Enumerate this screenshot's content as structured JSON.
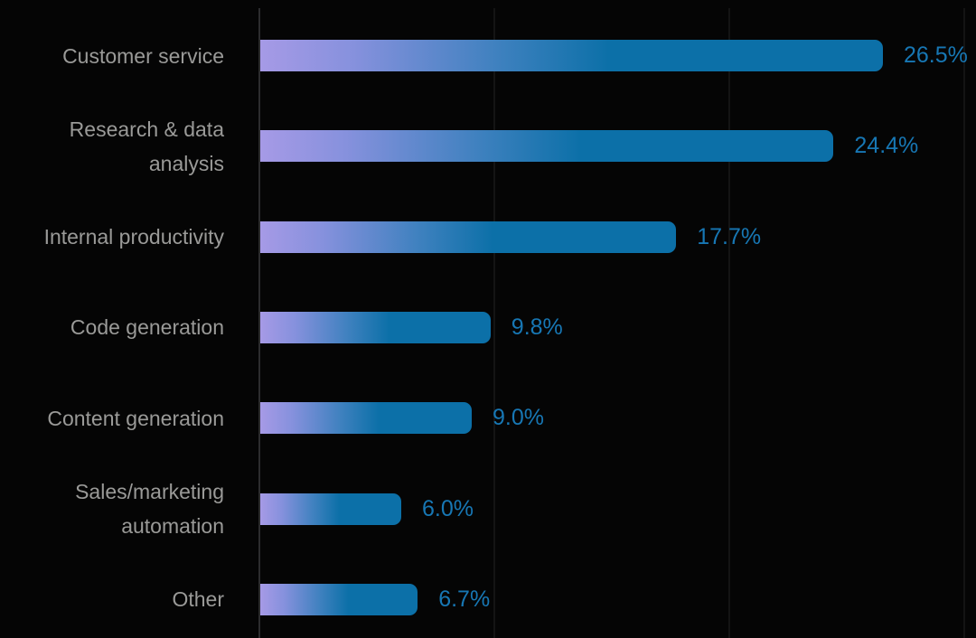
{
  "chart_data": {
    "type": "bar",
    "orientation": "horizontal",
    "title": "",
    "xlabel": "",
    "ylabel": "",
    "xlim": [
      0,
      30
    ],
    "gridlines_x": [
      10,
      20,
      30
    ],
    "grid": true,
    "legend": false,
    "categories": [
      "Customer service",
      "Research & data analysis",
      "Internal productivity",
      "Code generation",
      "Content generation",
      "Sales/marketing automation",
      "Other"
    ],
    "category_display_lines": [
      [
        "Customer service"
      ],
      [
        "Research & data",
        "analysis"
      ],
      [
        "Internal productivity"
      ],
      [
        "Code generation"
      ],
      [
        "Content generation"
      ],
      [
        "Sales/marketing",
        "automation"
      ],
      [
        "Other"
      ]
    ],
    "values": [
      26.5,
      24.4,
      17.7,
      9.8,
      9.0,
      6.0,
      6.7
    ],
    "value_labels": [
      "26.5%",
      "24.4%",
      "17.7%",
      "9.8%",
      "9.0%",
      "6.0%",
      "6.7%"
    ],
    "colors": {
      "background": "#050505",
      "bar_gradient_start": "#a69ae6",
      "bar_gradient_end": "#0c70a8",
      "value_label": "#1777b4",
      "category_label": "#9a9a98",
      "axis_line": "#2c2c2e",
      "gridline": "#141414"
    }
  }
}
